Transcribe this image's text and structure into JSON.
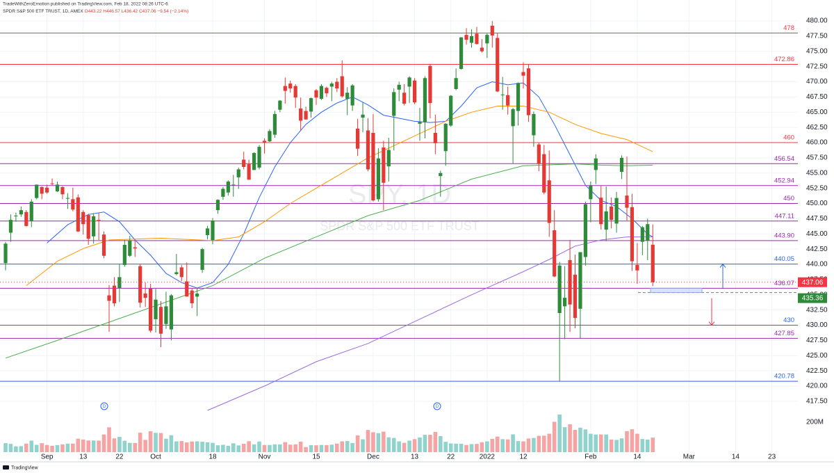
{
  "header": {
    "publisher": "TradeWithZeroEmotion published on TradingView.com, Feb 18, 2022 08:26 UTC-6",
    "symbol": "SPDR S&P 500 ETF TRUST, 1D, AMEX",
    "ohlc": [
      "O443.22",
      "H446.57",
      "L436.42",
      "C437.06",
      "−9.54 (−2.14%)"
    ]
  },
  "watermark": {
    "symbol": "SPY, 1D",
    "name": "SPDR S&P 500 ETF TRUST"
  },
  "footer": "TradingView",
  "dividend_label": "D",
  "chart_data": {
    "type": "candlestick",
    "categories": [
      null,
      null,
      null,
      null,
      null,
      null,
      null,
      null,
      "Sep",
      null,
      null,
      null,
      null,
      null,
      null,
      "13",
      null,
      null,
      null,
      null,
      null,
      null,
      "22",
      null,
      null,
      null,
      null,
      null,
      null,
      "Oct",
      null,
      null,
      null,
      null,
      null,
      null,
      null,
      null,
      null,
      null,
      "18",
      null,
      null,
      null,
      null,
      null,
      null,
      null,
      null,
      null,
      "Nov",
      null,
      null,
      null,
      null,
      null,
      null,
      null,
      null,
      null,
      "15",
      null,
      null,
      null,
      null,
      null,
      null,
      null,
      null,
      null,
      null,
      "Dec",
      null,
      null,
      null,
      null,
      null,
      null,
      null,
      "13",
      null,
      null,
      null,
      null,
      null,
      null,
      "22",
      null,
      null,
      null,
      null,
      null,
      null,
      "2022",
      null,
      null,
      null,
      null,
      null,
      null,
      "12",
      null,
      null,
      null,
      null,
      null,
      null,
      null,
      null,
      null,
      null,
      null,
      null,
      "Feb",
      null,
      null,
      null,
      null,
      null,
      null,
      null,
      null,
      "14",
      null,
      null,
      null,
      null,
      null,
      null,
      null,
      null,
      null,
      "Mar",
      null,
      null,
      null,
      null,
      null,
      null,
      null,
      null,
      "14",
      null,
      null,
      null,
      null,
      null,
      null,
      "23",
      null,
      null,
      null,
      null
    ],
    "open": [
      440.2,
      445.2,
      447.9,
      448.2,
      448.6,
      447.1,
      450.9,
      452.7,
      452.6,
      453.3,
      451.98,
      452.7,
      450.9,
      450.7,
      451.0,
      448.6,
      448.1,
      444.6,
      447.3,
      444.9,
      434.9,
      436.5,
      436.1,
      439.9,
      441.4,
      442.8,
      439.7,
      435.2,
      436.0,
      430.98,
      433.0,
      430.2,
      429.3,
      438.4,
      439.5,
      437.2,
      435.7,
      434.7,
      439.1,
      444.8,
      443.97,
      448.9,
      451.1,
      451.8,
      453.1,
      454.3,
      457.2,
      456.45,
      455.5,
      455.9,
      460.3,
      460.2,
      461.3,
      465.4,
      469.3,
      469.7,
      469.3,
      465.6,
      465.2,
      465.1,
      468.6,
      467.2,
      469.0,
      469.2,
      470.0,
      470.9,
      467.2,
      466.1,
      462.3,
      464.1,
      462.0,
      461.6,
      450.7,
      459.2,
      456.1,
      464.4,
      468.7,
      468.2,
      469.2,
      470.2,
      463.1,
      463.4,
      472.6,
      461.6,
      454.5,
      458.6,
      462.8,
      468.8,
      472.1,
      477.7,
      476.4,
      477.9,
      475.6,
      476.3,
      479.2,
      477.2,
      467.9,
      467.8,
      462.7,
      465.2,
      471.6,
      472.2,
      461.2,
      459.7,
      458.1,
      453.8,
      445.6,
      432.0,
      433.1,
      440.7,
      438.3,
      432.7,
      441.2,
      450.7,
      455.5,
      450.95,
      445.7,
      449.5,
      446.7,
      455.2,
      451.3,
      449.4,
      439.9,
      443.7,
      443.9,
      443.22,
      null,
      null,
      null,
      null,
      null,
      null,
      null,
      null,
      null,
      null,
      null,
      null,
      null,
      null,
      null,
      null,
      null,
      null,
      null,
      null,
      null,
      null,
      null,
      null,
      null,
      null,
      null
    ],
    "high": [
      443.7,
      448.2,
      448.5,
      449.5,
      448.9,
      450.7,
      453.1,
      452.8,
      453.1,
      454.1,
      453.6,
      452.8,
      451.7,
      452.6,
      451.5,
      448.9,
      448.3,
      448.4,
      448.4,
      445.4,
      436.6,
      437.9,
      440.0,
      444.0,
      444.7,
      444.1,
      440.0,
      437.0,
      436.8,
      436.0,
      433.96,
      435.5,
      435.1,
      441.7,
      439.9,
      440.3,
      436.1,
      436.1,
      442.7,
      446.3,
      447.6,
      450.7,
      452.7,
      453.8,
      454.7,
      455.9,
      458.5,
      457.2,
      458.4,
      459.6,
      460.7,
      462.2,
      465.2,
      467.0,
      470.7,
      470.2,
      469.6,
      467.4,
      465.9,
      467.4,
      468.8,
      469.6,
      469.2,
      470.0,
      470.6,
      473.5,
      469.1,
      469.6,
      463.9,
      466.6,
      464.0,
      464.7,
      459.1,
      460.3,
      460.8,
      468.9,
      470.0,
      469.6,
      470.9,
      470.6,
      465.7,
      470.9,
      472.9,
      464.6,
      455.4,
      463.2,
      467.8,
      472.2,
      477.3,
      478.8,
      478.6,
      479.0,
      477.0,
      477.9,
      479.98,
      477.98,
      470.8,
      469.2,
      465.7,
      469.9,
      473.2,
      472.9,
      465.1,
      459.96,
      459.6,
      458.7,
      448.9,
      440.4,
      439.7,
      444.0,
      441.6,
      442.0,
      450.3,
      453.6,
      458.1,
      452.97,
      452.8,
      450.99,
      451.9,
      457.9,
      457.7,
      451.6,
      443.5,
      446.3,
      447.5,
      446.57,
      null,
      null,
      null,
      null,
      null,
      null,
      null,
      null,
      null,
      null,
      null,
      null,
      null,
      null,
      null,
      null,
      null,
      null,
      null,
      null,
      null,
      null,
      null,
      null,
      null,
      null,
      null
    ],
    "low": [
      439.0,
      443.7,
      447.0,
      447.8,
      446.2,
      446.1,
      450.7,
      450.7,
      451.6,
      453.0,
      451.9,
      450.7,
      449.1,
      448.7,
      445.3,
      444.9,
      443.2,
      443.4,
      444.0,
      441.0,
      428.9,
      433.1,
      433.8,
      439.6,
      441.2,
      441.2,
      432.9,
      433.0,
      428.8,
      428.8,
      426.4,
      429.4,
      427.5,
      438.2,
      437.2,
      434.7,
      432.8,
      431.5,
      438.6,
      444.1,
      443.3,
      448.3,
      450.6,
      451.3,
      451.1,
      452.4,
      455.6,
      453.9,
      455.5,
      455.6,
      458.2,
      460.1,
      460.8,
      464.99,
      466.4,
      468.2,
      465.7,
      462.0,
      463.8,
      464.1,
      466.2,
      467.0,
      467.5,
      466.8,
      468.3,
      467.4,
      464.5,
      465.2,
      457.8,
      461.7,
      455.3,
      450.3,
      450.3,
      448.9,
      453.6,
      458.7,
      466.8,
      466.1,
      466.5,
      466.3,
      460.3,
      460.7,
      464.0,
      458.1,
      451.1,
      456.2,
      462.6,
      468.6,
      472.0,
      476.1,
      475.6,
      476.1,
      474.8,
      473.9,
      475.6,
      468.3,
      465.4,
      464.6,
      456.6,
      462.8,
      468.9,
      463.4,
      459.3,
      455.3,
      451.5,
      444.5,
      437.9,
      420.8,
      427.7,
      428.9,
      429.5,
      427.8,
      439.8,
      446.9,
      453.2,
      445.7,
      443.8,
      445.9,
      445.2,
      454.0,
      447.2,
      438.9,
      436.8,
      441.5,
      440.7,
      436.42,
      null,
      null,
      null,
      null,
      null,
      null,
      null,
      null,
      null,
      null,
      null,
      null,
      null,
      null,
      null,
      null,
      null,
      null,
      null,
      null,
      null,
      null,
      null,
      null,
      null,
      null,
      null
    ],
    "close": [
      443.4,
      447.3,
      448.0,
      448.9,
      446.3,
      450.3,
      453.1,
      451.6,
      451.8,
      453.2,
      453.1,
      451.5,
      450.9,
      449.0,
      445.4,
      446.6,
      444.2,
      447.9,
      447.2,
      441.4,
      434.0,
      433.6,
      437.9,
      443.2,
      443.9,
      442.6,
      433.7,
      434.5,
      429.1,
      434.2,
      428.6,
      433.1,
      434.9,
      438.7,
      437.9,
      434.7,
      433.6,
      435.2,
      442.5,
      445.9,
      447.2,
      450.6,
      452.4,
      453.6,
      453.1,
      455.6,
      456.0,
      453.9,
      458.3,
      459.3,
      460.0,
      461.9,
      464.7,
      466.9,
      468.5,
      468.9,
      467.4,
      463.6,
      463.8,
      467.3,
      467.4,
      469.3,
      468.1,
      469.7,
      468.9,
      467.6,
      468.2,
      469.4,
      459.0,
      464.6,
      455.6,
      450.5,
      457.4,
      453.4,
      458.8,
      468.3,
      469.5,
      466.4,
      470.7,
      466.6,
      463.4,
      470.6,
      466.5,
      459.9,
      455.0,
      463.1,
      467.7,
      470.6,
      477.3,
      476.9,
      477.5,
      476.2,
      475.0,
      477.7,
      477.6,
      468.4,
      467.9,
      466.1,
      465.5,
      469.8,
      471.0,
      464.5,
      464.7,
      456.5,
      451.8,
      446.8,
      438.0,
      439.8,
      434.5,
      433.4,
      431.2,
      442.0,
      449.9,
      453.0,
      457.4,
      446.6,
      448.7,
      447.3,
      450.9,
      457.5,
      449.3,
      440.5,
      439.0,
      446.1,
      446.6,
      437.06,
      null,
      null,
      null,
      null,
      null,
      null,
      null,
      null,
      null,
      null,
      null,
      null,
      null,
      null,
      null,
      null,
      null,
      null,
      null,
      null,
      null,
      null,
      null,
      null,
      null,
      null,
      null
    ],
    "volume": [
      60,
      55,
      39,
      40,
      57,
      77,
      49,
      60,
      48,
      42,
      47,
      52,
      57,
      57,
      90,
      84,
      78,
      78,
      77,
      118,
      166,
      92,
      102,
      76,
      62,
      61,
      130,
      82,
      140,
      129,
      128,
      90,
      113,
      72,
      74,
      65,
      71,
      72,
      70,
      66,
      62,
      46,
      49,
      42,
      59,
      45,
      56,
      73,
      52,
      71,
      48,
      48,
      52,
      52,
      67,
      50,
      52,
      70,
      34,
      47,
      46,
      48,
      47,
      50,
      57,
      72,
      74,
      61,
      112,
      86,
      148,
      133,
      127,
      137,
      99,
      95,
      72,
      62,
      77,
      87,
      98,
      116,
      116,
      135,
      107,
      69,
      58,
      57,
      56,
      48,
      54,
      55,
      66,
      72,
      89,
      104,
      87,
      85,
      119,
      74,
      72,
      91,
      95,
      109,
      110,
      123,
      203,
      252,
      167,
      186,
      149,
      164,
      152,
      123,
      118,
      118,
      118,
      84,
      82,
      92,
      140,
      153,
      123,
      88,
      84,
      97,
      null,
      null,
      null,
      null,
      null,
      null,
      null,
      null,
      null,
      null,
      null,
      null,
      null,
      null,
      null,
      null,
      null,
      null,
      null,
      null,
      null,
      null,
      null,
      null,
      null,
      null,
      null
    ],
    "up_color": "#2e8b3a",
    "down_color": "#e53935",
    "volume_up_color": "#8fd3cc",
    "volume_down_color": "#f5a3a3",
    "ylim": [
      416,
      483.43
    ],
    "yticks": [
      {
        "value": 417.5,
        "label": "417.50"
      },
      {
        "value": 420,
        "label": "420.00"
      },
      {
        "value": 422.5,
        "label": "422.50"
      },
      {
        "value": 425,
        "label": "425.00"
      },
      {
        "value": 427.5,
        "label": "427.50"
      },
      {
        "value": 430,
        "label": "430.00"
      },
      {
        "value": 432.5,
        "label": "432.50"
      },
      {
        "value": 435,
        "label": "435.00"
      },
      {
        "value": 437.5,
        "label": "437.50"
      },
      {
        "value": 440,
        "label": "440.00"
      },
      {
        "value": 442.5,
        "label": "442.50"
      },
      {
        "value": 445,
        "label": "445.00"
      },
      {
        "value": 447.5,
        "label": "447.50"
      },
      {
        "value": 450,
        "label": "450.00"
      },
      {
        "value": 452.5,
        "label": "452.50"
      },
      {
        "value": 455,
        "label": "455.00"
      },
      {
        "value": 457.5,
        "label": "457.50"
      },
      {
        "value": 460,
        "label": "460.00"
      },
      {
        "value": 462.5,
        "label": "462.50"
      },
      {
        "value": 465,
        "label": "465.00"
      },
      {
        "value": 467.5,
        "label": "467.50"
      },
      {
        "value": 470,
        "label": "470.00"
      },
      {
        "value": 472.5,
        "label": "472.50"
      },
      {
        "value": 475,
        "label": "475.00"
      },
      {
        "value": 477.5,
        "label": "477.50"
      },
      {
        "value": 480,
        "label": "480.00"
      }
    ],
    "volume_lim": [
      0,
      270
    ],
    "volume_ticks": [
      {
        "value": 200,
        "label": "200M"
      }
    ],
    "grid": true,
    "moving_averages": [
      {
        "color": "#2962ff",
        "x": [
          8,
          12,
          16,
          19,
          22,
          25,
          28,
          31,
          34,
          37,
          40,
          43,
          46,
          49,
          52,
          55,
          58,
          61,
          64,
          67,
          70,
          73,
          76,
          79,
          82,
          85,
          88,
          91,
          94,
          97,
          100,
          103,
          106,
          109,
          112,
          115,
          118,
          121,
          124,
          125
        ],
        "values": [
          443.5,
          446.5,
          448.2,
          448.6,
          447,
          444,
          441.5,
          438.5,
          437,
          436.1,
          437,
          440,
          445,
          451,
          456,
          460,
          463,
          465,
          466.5,
          467.5,
          466.2,
          464.5,
          464,
          463.5,
          463.3,
          463.5,
          466,
          469,
          470,
          469.5,
          469.8,
          467.5,
          463,
          458,
          453,
          450.5,
          449.5,
          447.5,
          445,
          444.5
        ]
      },
      {
        "color": "#ff9800",
        "x": [
          4,
          10,
          15,
          20,
          30,
          40,
          45,
          50,
          55,
          60,
          65,
          70,
          75,
          80,
          85,
          90,
          95,
          100,
          105,
          110,
          115,
          120,
          125
        ],
        "values": [
          436.5,
          440.5,
          442.6,
          444,
          444.3,
          443.9,
          444.5,
          447,
          450,
          452.5,
          455,
          457.5,
          459.5,
          461.5,
          463.5,
          465,
          466,
          466,
          465,
          463,
          461.5,
          460.5,
          458.5
        ]
      },
      {
        "color": "#4caf50",
        "x": [
          0,
          10,
          20,
          30,
          40,
          50,
          60,
          70,
          80,
          90,
          100,
          110,
          115,
          120,
          125
        ],
        "values": [
          424.6,
          427.5,
          430.5,
          433.5,
          436.5,
          441,
          444.5,
          448,
          450.5,
          454,
          456.2,
          456.5,
          456.3,
          456.2,
          456.3
        ]
      },
      {
        "color": "#9c6ade",
        "x": [
          39,
          50,
          60,
          70,
          80,
          90,
          100,
          105,
          110,
          115,
          120,
          125
        ],
        "values": [
          416,
          420,
          424,
          427,
          431,
          435,
          438.8,
          440.8,
          443,
          444,
          444.5,
          444.5
        ]
      }
    ],
    "levels": [
      {
        "value": 478,
        "color": "#f23645"
      },
      {
        "value": 472.86,
        "color": "#f23645"
      },
      {
        "value": 460,
        "color": "#f23645"
      },
      {
        "value": 456.54,
        "color": "#9c27b0"
      },
      {
        "value": 452.94,
        "color": "#9c27b0"
      },
      {
        "value": 450,
        "color": "#9c27b0"
      },
      {
        "value": 447.11,
        "color": "#9c27b0"
      },
      {
        "value": 443.9,
        "label": "443.90",
        "color": "#9c27b0"
      },
      {
        "value": 440.05,
        "color": "#2962ff"
      },
      {
        "value": 436.07,
        "color": "#9c27b0"
      },
      {
        "value": 430,
        "color": "#2962ff"
      },
      {
        "value": 427.85,
        "color": "#9c27b0"
      },
      {
        "value": 420.78,
        "color": "#2962ff"
      }
    ],
    "last_price": 437.06,
    "last_price_color": "#f23645",
    "marker_price": 435.36,
    "marker_price_color": "#2e8b3a"
  }
}
